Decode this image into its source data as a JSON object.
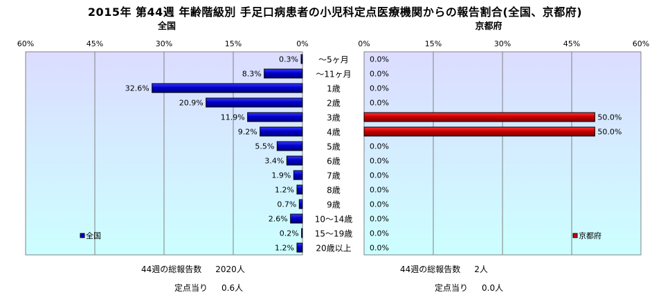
{
  "title": "2015年 第44週 年齢階級別 手足口病患者の小児科定点医療機関からの報告割合(全国、京都府)",
  "colors": {
    "plot_bg_top": "#dcdcff",
    "plot_bg_bottom": "#ccffff",
    "national_bar": "#0000cc",
    "kyoto_bar": "#cc0000",
    "grid": "#808080"
  },
  "chart_data": [
    {
      "type": "bar",
      "orientation": "horizontal",
      "direction": "right-to-left",
      "title": "全国",
      "legend": "全国",
      "legend_position": "bottom-left",
      "categories": [
        "〜5ヶ月",
        "〜11ヶ月",
        "1歳",
        "2歳",
        "3歳",
        "4歳",
        "5歳",
        "6歳",
        "7歳",
        "8歳",
        "9歳",
        "10〜14歳",
        "15〜19歳",
        "20歳以上"
      ],
      "values": [
        0.3,
        8.3,
        32.6,
        20.9,
        11.9,
        9.2,
        5.5,
        3.4,
        1.9,
        1.2,
        0.7,
        2.6,
        0.2,
        1.2
      ],
      "value_labels": [
        "0.3%",
        "8.3%",
        "32.6%",
        "20.9%",
        "11.9%",
        "9.2%",
        "5.5%",
        "3.4%",
        "1.9%",
        "1.2%",
        "0.7%",
        "2.6%",
        "0.2%",
        "1.2%"
      ],
      "xlim": [
        0,
        60
      ],
      "ticks": [
        "60%",
        "45%",
        "30%",
        "15%",
        "0%"
      ],
      "grid": true
    },
    {
      "type": "bar",
      "orientation": "horizontal",
      "direction": "left-to-right",
      "title": "京都府",
      "legend": "京都府",
      "legend_position": "bottom-right",
      "categories": [
        "〜5ヶ月",
        "〜11ヶ月",
        "1歳",
        "2歳",
        "3歳",
        "4歳",
        "5歳",
        "6歳",
        "7歳",
        "8歳",
        "9歳",
        "10〜14歳",
        "15〜19歳",
        "20歳以上"
      ],
      "values": [
        0,
        0,
        0,
        0,
        50,
        50,
        0,
        0,
        0,
        0,
        0,
        0,
        0,
        0
      ],
      "value_labels": [
        "0.0%",
        "0.0%",
        "0.0%",
        "0.0%",
        "50.0%",
        "50.0%",
        "0.0%",
        "0.0%",
        "0.0%",
        "0.0%",
        "0.0%",
        "0.0%",
        "0.0%",
        "0.0%"
      ],
      "xlim": [
        0,
        60
      ],
      "ticks": [
        "0%",
        "15%",
        "30%",
        "45%",
        "60%"
      ],
      "grid": true
    }
  ],
  "stats": {
    "national": {
      "total_label": "44週の総報告数",
      "total_value": "2020人",
      "per_label": "定点当り",
      "per_value": "0.6人"
    },
    "kyoto": {
      "total_label": "44週の総報告数",
      "total_value": "2人",
      "per_label": "定点当り",
      "per_value": "0.0人"
    }
  }
}
